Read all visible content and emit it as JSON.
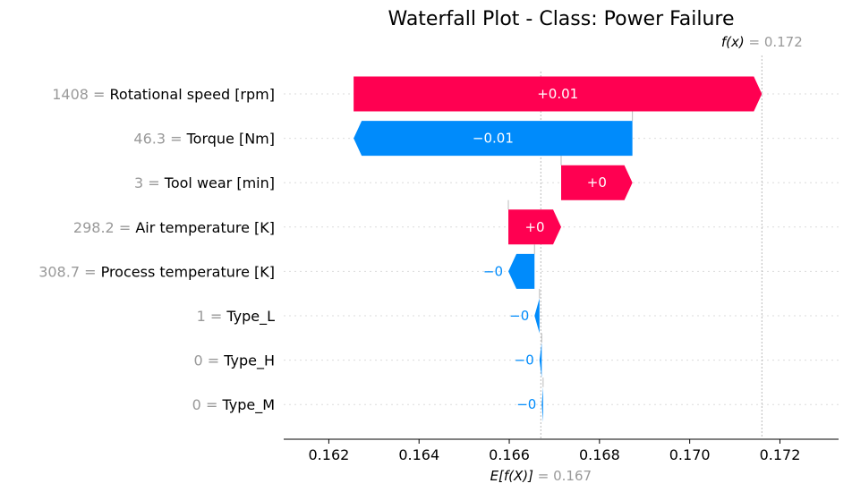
{
  "chart_data": {
    "type": "waterfall",
    "title": "Waterfall Plot - Class: Power Failure",
    "base_value": 0.1667,
    "base_label": "E[f(X)]",
    "base_value_text": "= 0.167",
    "output_value": 0.1716,
    "output_label": "f(x)",
    "output_value_text": "= 0.172",
    "xlim": [
      0.161,
      0.1733
    ],
    "x_ticks": [
      "0.162",
      "0.164",
      "0.166",
      "0.168",
      "0.170",
      "0.172"
    ],
    "features": [
      {
        "value": "1408",
        "name": "Rotational speed [rpm]",
        "start": 0.16255,
        "end": 0.1716,
        "label": "+0.01"
      },
      {
        "value": "46.3",
        "name": "Torque [Nm]",
        "start": 0.16873,
        "end": 0.16255,
        "label": "−0.01"
      },
      {
        "value": "3",
        "name": "Tool wear [min]",
        "start": 0.16715,
        "end": 0.16873,
        "label": "+0"
      },
      {
        "value": "298.2",
        "name": "Air temperature [K]",
        "start": 0.16598,
        "end": 0.16715,
        "label": "+0"
      },
      {
        "value": "308.7",
        "name": "Process temperature [K]",
        "start": 0.16656,
        "end": 0.16598,
        "label": "−0"
      },
      {
        "value": "1",
        "name": "Type_L",
        "start": 0.16667,
        "end": 0.16656,
        "label": "−0"
      },
      {
        "value": "0",
        "name": "Type_H",
        "start": 0.16672,
        "end": 0.16667,
        "label": "−0"
      },
      {
        "value": "0",
        "name": "Type_M",
        "start": 0.16675,
        "end": 0.16672,
        "label": "−0"
      }
    ],
    "colors": {
      "positive": "#ff0051",
      "negative": "#008bfb"
    }
  }
}
